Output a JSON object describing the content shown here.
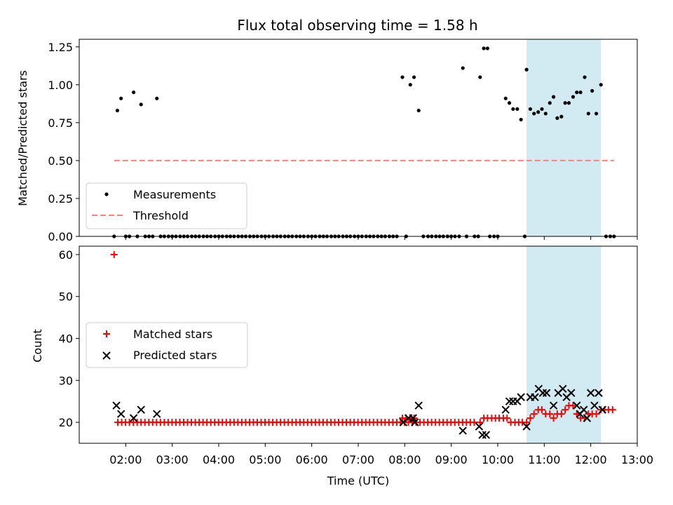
{
  "title": "Flux total observing time = 1.58 h",
  "chart_data": [
    {
      "type": "scatter",
      "panel": "top",
      "ylabel": "Matched/Predicted stars",
      "xlabel": "",
      "xlim_hours": [
        1.0,
        13.0
      ],
      "ylim": [
        0,
        1.3
      ],
      "yticks": [
        0,
        0.25,
        0.5,
        0.75,
        1.0,
        1.25
      ],
      "ytick_labels": [
        "0.00",
        "0.25",
        "0.50",
        "0.75",
        "1.00",
        "1.25"
      ],
      "highlight_span_hours": [
        10.62,
        12.22
      ],
      "series": [
        {
          "name": "Measurements",
          "marker": "dot",
          "color": "#000000",
          "points": [
            [
              1.75,
              0
            ],
            [
              1.82,
              0.83
            ],
            [
              1.9,
              0.91
            ],
            [
              2.0,
              0
            ],
            [
              2.08,
              0
            ],
            [
              2.17,
              0.95
            ],
            [
              2.25,
              0
            ],
            [
              2.33,
              0.87
            ],
            [
              2.42,
              0
            ],
            [
              2.5,
              0
            ],
            [
              2.58,
              0
            ],
            [
              2.67,
              0.91
            ],
            [
              2.75,
              0
            ],
            [
              2.83,
              0
            ],
            [
              2.92,
              0
            ],
            [
              3.0,
              0
            ],
            [
              3.08,
              0
            ],
            [
              3.17,
              0
            ],
            [
              3.25,
              0
            ],
            [
              3.33,
              0
            ],
            [
              3.42,
              0
            ],
            [
              3.5,
              0
            ],
            [
              3.58,
              0
            ],
            [
              3.67,
              0
            ],
            [
              3.75,
              0
            ],
            [
              3.83,
              0
            ],
            [
              3.92,
              0
            ],
            [
              4.0,
              0
            ],
            [
              4.08,
              0
            ],
            [
              4.17,
              0
            ],
            [
              4.25,
              0
            ],
            [
              4.33,
              0
            ],
            [
              4.42,
              0
            ],
            [
              4.5,
              0
            ],
            [
              4.58,
              0
            ],
            [
              4.67,
              0
            ],
            [
              4.75,
              0
            ],
            [
              4.83,
              0
            ],
            [
              4.92,
              0
            ],
            [
              5.0,
              0
            ],
            [
              5.08,
              0
            ],
            [
              5.17,
              0
            ],
            [
              5.25,
              0
            ],
            [
              5.33,
              0
            ],
            [
              5.42,
              0
            ],
            [
              5.5,
              0
            ],
            [
              5.58,
              0
            ],
            [
              5.67,
              0
            ],
            [
              5.75,
              0
            ],
            [
              5.83,
              0
            ],
            [
              5.92,
              0
            ],
            [
              6.0,
              0
            ],
            [
              6.08,
              0
            ],
            [
              6.17,
              0
            ],
            [
              6.25,
              0
            ],
            [
              6.33,
              0
            ],
            [
              6.42,
              0
            ],
            [
              6.5,
              0
            ],
            [
              6.58,
              0
            ],
            [
              6.67,
              0
            ],
            [
              6.75,
              0
            ],
            [
              6.83,
              0
            ],
            [
              6.92,
              0
            ],
            [
              7.0,
              0
            ],
            [
              7.08,
              0
            ],
            [
              7.17,
              0
            ],
            [
              7.25,
              0
            ],
            [
              7.33,
              0
            ],
            [
              7.42,
              0
            ],
            [
              7.5,
              0
            ],
            [
              7.58,
              0
            ],
            [
              7.67,
              0
            ],
            [
              7.75,
              0
            ],
            [
              7.83,
              0
            ],
            [
              7.95,
              1.05
            ],
            [
              8.03,
              0
            ],
            [
              8.12,
              1.0
            ],
            [
              8.2,
              1.05
            ],
            [
              8.3,
              0.83
            ],
            [
              8.4,
              0
            ],
            [
              8.5,
              0
            ],
            [
              8.58,
              0
            ],
            [
              8.67,
              0
            ],
            [
              8.75,
              0
            ],
            [
              8.83,
              0
            ],
            [
              8.92,
              0
            ],
            [
              9.0,
              0
            ],
            [
              9.08,
              0
            ],
            [
              9.17,
              0
            ],
            [
              9.25,
              1.11
            ],
            [
              9.33,
              0
            ],
            [
              9.5,
              0
            ],
            [
              9.58,
              0
            ],
            [
              9.62,
              1.05
            ],
            [
              9.7,
              1.24
            ],
            [
              9.78,
              1.24
            ],
            [
              9.83,
              0
            ],
            [
              9.92,
              0
            ],
            [
              10.0,
              0
            ],
            [
              10.17,
              0.91
            ],
            [
              10.25,
              0.88
            ],
            [
              10.33,
              0.84
            ],
            [
              10.42,
              0.84
            ],
            [
              10.5,
              0.77
            ],
            [
              10.58,
              0
            ],
            [
              10.62,
              1.1
            ],
            [
              10.7,
              0.84
            ],
            [
              10.78,
              0.81
            ],
            [
              10.87,
              0.82
            ],
            [
              10.95,
              0.84
            ],
            [
              11.03,
              0.81
            ],
            [
              11.12,
              0.88
            ],
            [
              11.2,
              0.92
            ],
            [
              11.28,
              0.78
            ],
            [
              11.37,
              0.79
            ],
            [
              11.45,
              0.88
            ],
            [
              11.53,
              0.88
            ],
            [
              11.62,
              0.92
            ],
            [
              11.7,
              0.95
            ],
            [
              11.78,
              0.95
            ],
            [
              11.87,
              1.05
            ],
            [
              11.95,
              0.81
            ],
            [
              12.03,
              0.96
            ],
            [
              12.12,
              0.81
            ],
            [
              12.22,
              1.0
            ],
            [
              12.33,
              0
            ],
            [
              12.42,
              0
            ],
            [
              12.5,
              0
            ]
          ]
        },
        {
          "name": "Threshold",
          "style": "dashed",
          "color": "#ff7f7f",
          "points": [
            [
              1.75,
              0.5
            ],
            [
              12.5,
              0.5
            ]
          ]
        }
      ],
      "legend": [
        "Measurements",
        "Threshold"
      ],
      "legend_loc": "lower left"
    },
    {
      "type": "scatter",
      "panel": "bottom",
      "ylabel": "Count",
      "xlabel": "Time (UTC)",
      "xlim_hours": [
        1.0,
        13.0
      ],
      "ylim": [
        15,
        62
      ],
      "yticks": [
        20,
        30,
        40,
        50,
        60
      ],
      "ytick_labels": [
        "20",
        "30",
        "40",
        "50",
        "60"
      ],
      "xticks_hours": [
        2,
        3,
        4,
        5,
        6,
        7,
        8,
        9,
        10,
        11,
        12,
        13
      ],
      "xtick_labels": [
        "02:00",
        "03:00",
        "04:00",
        "05:00",
        "06:00",
        "07:00",
        "08:00",
        "09:00",
        "10:00",
        "11:00",
        "12:00",
        "13:00"
      ],
      "highlight_span_hours": [
        10.62,
        12.22
      ],
      "series": [
        {
          "name": "Matched stars",
          "marker": "plus",
          "color": "#ff0000",
          "outlier": [
            1.75,
            60
          ],
          "baseline_start": 1.83,
          "baseline_end": 9.55,
          "baseline_step": 0.0833,
          "baseline_value": 20,
          "points": [
            [
              7.95,
              21
            ],
            [
              8.03,
              21
            ],
            [
              8.12,
              21
            ],
            [
              8.2,
              21
            ],
            [
              9.62,
              20
            ],
            [
              9.7,
              21
            ],
            [
              9.78,
              21
            ],
            [
              9.87,
              21
            ],
            [
              9.95,
              21
            ],
            [
              10.03,
              21
            ],
            [
              10.12,
              21
            ],
            [
              10.2,
              21
            ],
            [
              10.28,
              20
            ],
            [
              10.37,
              20
            ],
            [
              10.45,
              20
            ],
            [
              10.53,
              20
            ],
            [
              10.62,
              20
            ],
            [
              10.7,
              21
            ],
            [
              10.78,
              22
            ],
            [
              10.87,
              23
            ],
            [
              10.95,
              23
            ],
            [
              11.03,
              22
            ],
            [
              11.12,
              22
            ],
            [
              11.2,
              21
            ],
            [
              11.28,
              22
            ],
            [
              11.37,
              22
            ],
            [
              11.45,
              23
            ],
            [
              11.53,
              24
            ],
            [
              11.62,
              24
            ],
            [
              11.7,
              22
            ],
            [
              11.78,
              21
            ],
            [
              11.87,
              21
            ],
            [
              11.95,
              22
            ],
            [
              12.03,
              22
            ],
            [
              12.12,
              22
            ],
            [
              12.22,
              23
            ],
            [
              12.3,
              23
            ],
            [
              12.38,
              23
            ],
            [
              12.47,
              23
            ]
          ]
        },
        {
          "name": "Predicted stars",
          "marker": "x",
          "color": "#000000",
          "points": [
            [
              1.8,
              24
            ],
            [
              1.9,
              22
            ],
            [
              2.17,
              21
            ],
            [
              2.33,
              23
            ],
            [
              2.67,
              22
            ],
            [
              7.97,
              20
            ],
            [
              8.08,
              21
            ],
            [
              8.18,
              21
            ],
            [
              8.22,
              20
            ],
            [
              8.3,
              24
            ],
            [
              9.25,
              18
            ],
            [
              9.6,
              19
            ],
            [
              9.67,
              17
            ],
            [
              9.75,
              17
            ],
            [
              10.17,
              23
            ],
            [
              10.25,
              25
            ],
            [
              10.33,
              25
            ],
            [
              10.42,
              25
            ],
            [
              10.5,
              26
            ],
            [
              10.62,
              19
            ],
            [
              10.7,
              26
            ],
            [
              10.8,
              26
            ],
            [
              10.88,
              28
            ],
            [
              10.97,
              27
            ],
            [
              11.05,
              27
            ],
            [
              11.2,
              24
            ],
            [
              11.3,
              27
            ],
            [
              11.4,
              28
            ],
            [
              11.48,
              26
            ],
            [
              11.58,
              27
            ],
            [
              11.7,
              24
            ],
            [
              11.77,
              22
            ],
            [
              11.85,
              23
            ],
            [
              11.92,
              21
            ],
            [
              12.0,
              27
            ],
            [
              12.08,
              24
            ],
            [
              12.17,
              27
            ],
            [
              12.25,
              23
            ]
          ]
        }
      ],
      "legend": [
        "Matched stars",
        "Predicted stars"
      ],
      "legend_loc": "center left"
    }
  ]
}
